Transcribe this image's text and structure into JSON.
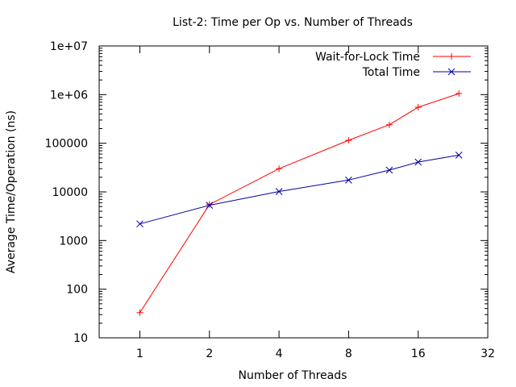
{
  "chart_data": {
    "type": "line",
    "title": "List-2: Time per Op vs. Number of Threads",
    "xlabel": "Number of Threads",
    "ylabel": "Average Time/Operation (ns)",
    "x_scale": "log2",
    "y_scale": "log10",
    "xlim": [
      0.6667,
      32
    ],
    "ylim": [
      10,
      10000000
    ],
    "x_ticks": [
      1,
      2,
      4,
      8,
      16,
      32
    ],
    "x_tick_labels": [
      "1",
      "2",
      "4",
      "8",
      "16",
      "32"
    ],
    "y_ticks": [
      10,
      100,
      1000,
      10000,
      100000,
      1000000,
      10000000
    ],
    "y_tick_labels": [
      "10",
      "100",
      "1000",
      "10000",
      "100000",
      "1e+06",
      "1e+07"
    ],
    "grid": false,
    "legend_position": "top-right",
    "series": [
      {
        "name": "Wait-for-Lock Time",
        "color": "#ff0000",
        "marker": "plus",
        "x": [
          1,
          2,
          4,
          8,
          12,
          16,
          24
        ],
        "y": [
          33,
          5500,
          30000,
          115000,
          240000,
          550000,
          1050000
        ]
      },
      {
        "name": "Total Time",
        "color": "#0000a0",
        "marker": "cross",
        "x": [
          1,
          2,
          4,
          8,
          12,
          16,
          24
        ],
        "y": [
          2200,
          5300,
          10200,
          17500,
          28000,
          41000,
          57000
        ]
      }
    ]
  }
}
